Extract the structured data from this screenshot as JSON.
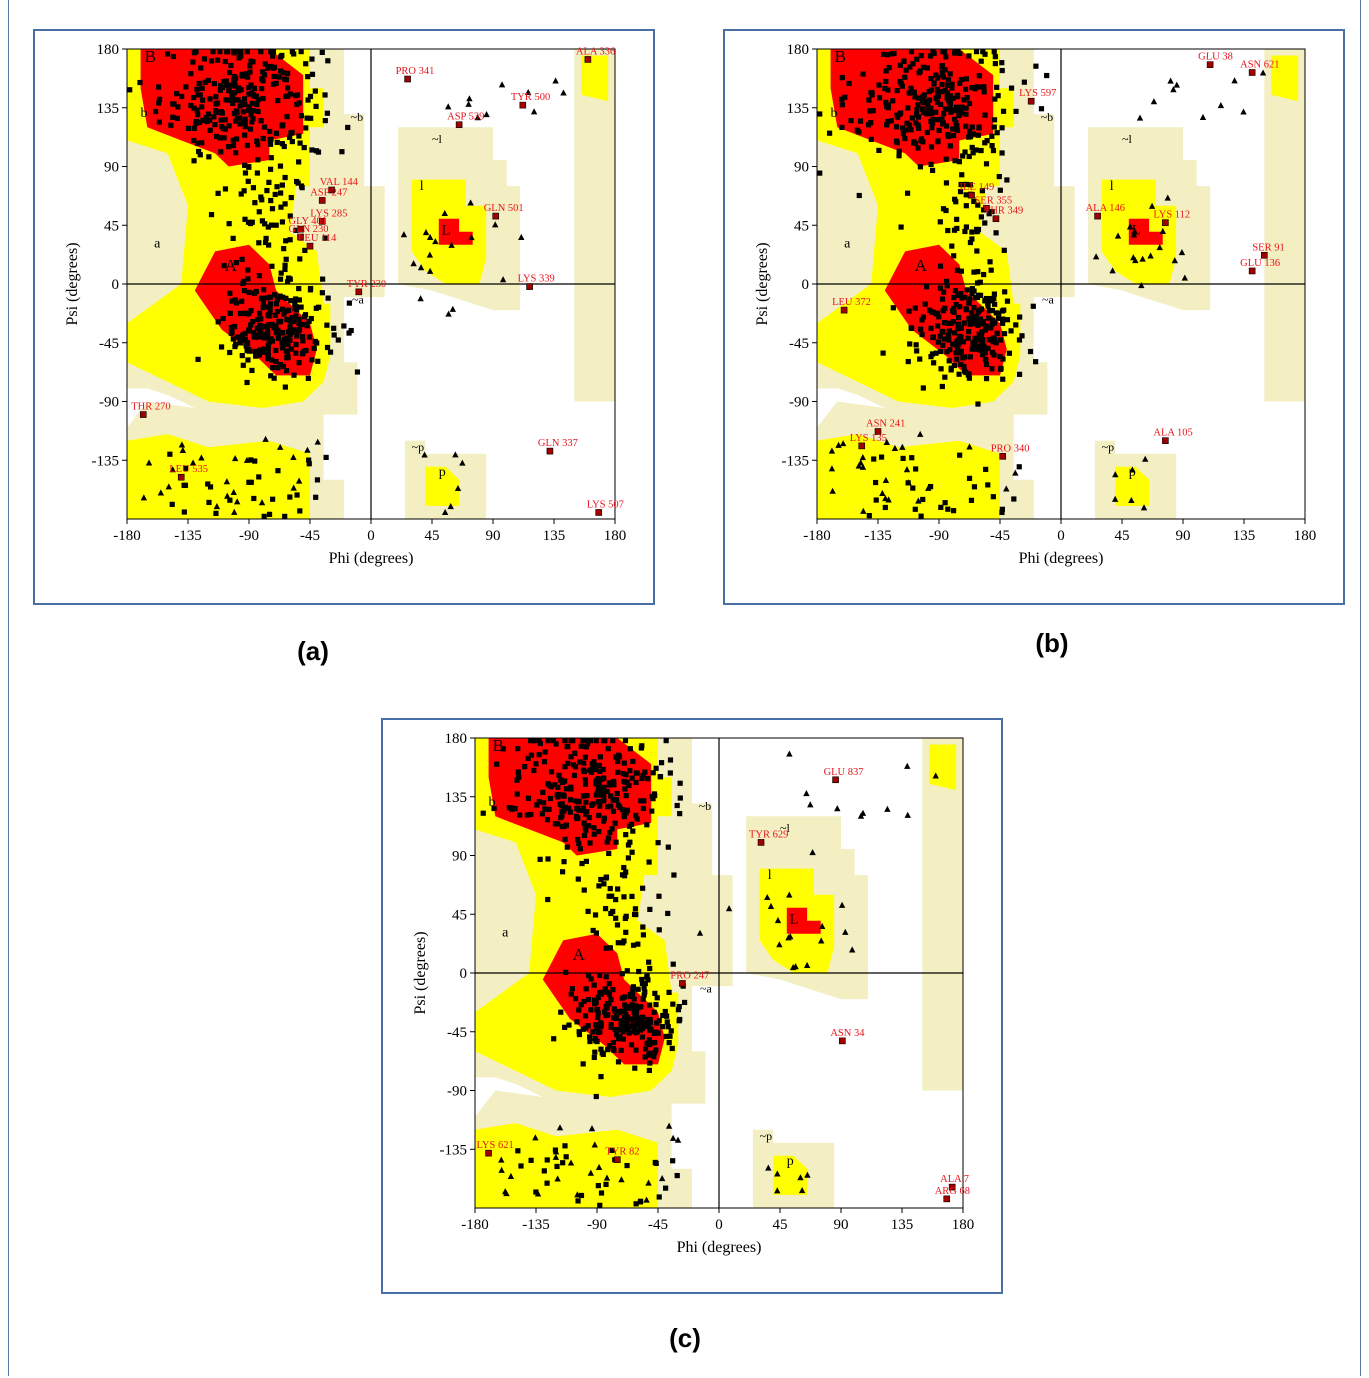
{
  "captions": {
    "a": "(a)",
    "b": "(b)",
    "c": "(c)"
  },
  "chart_data": [
    {
      "type": "scatter",
      "panel": "a",
      "xlabel": "Phi (degrees)",
      "ylabel": "Psi (degrees)",
      "xlim": [
        -180,
        180
      ],
      "ylim": [
        -180,
        180
      ],
      "xticks": [
        "-180",
        "-135",
        "-90",
        "-45",
        "0",
        "45",
        "90",
        "135",
        "180"
      ],
      "yticks": [
        "180",
        "135",
        "90",
        "45",
        "0",
        "-45",
        "-90",
        "-135"
      ],
      "region_labels": [
        "B",
        "b",
        "~b",
        "a",
        "~a",
        "A",
        "l",
        "~l",
        "p",
        "~p",
        "L"
      ],
      "outliers": [
        {
          "label": "ALA 336",
          "phi": 160,
          "psi": 172
        },
        {
          "label": "PRO 341",
          "phi": 27,
          "psi": 157
        },
        {
          "label": "TYR 500",
          "phi": 112,
          "psi": 137
        },
        {
          "label": "ASP 539",
          "phi": 65,
          "psi": 122
        },
        {
          "label": "VAL 144",
          "phi": -29,
          "psi": 72
        },
        {
          "label": "ASP 247",
          "phi": -36,
          "psi": 64
        },
        {
          "label": "LYS 285",
          "phi": -36,
          "psi": 48
        },
        {
          "label": "GLN 501",
          "phi": 92,
          "psi": 52
        },
        {
          "label": "GLY 401",
          "phi": -52,
          "psi": 42
        },
        {
          "label": "GLN 230",
          "phi": -52,
          "psi": 36
        },
        {
          "label": "LEU 114",
          "phi": -45,
          "psi": 29
        },
        {
          "label": "TYR 230",
          "phi": -9,
          "psi": -6
        },
        {
          "label": "LYS 339",
          "phi": 117,
          "psi": -2
        },
        {
          "label": "THR 270",
          "phi": -168,
          "psi": -100
        },
        {
          "label": "GLN 337",
          "phi": 132,
          "psi": -128
        },
        {
          "label": "LEU 535",
          "phi": -140,
          "psi": -148
        },
        {
          "label": "LYS 507",
          "phi": 168,
          "psi": -175
        }
      ]
    },
    {
      "type": "scatter",
      "panel": "b",
      "xlabel": "Phi (degrees)",
      "ylabel": "Psi (degrees)",
      "xlim": [
        -180,
        180
      ],
      "ylim": [
        -180,
        180
      ],
      "xticks": [
        "-180",
        "-135",
        "-90",
        "-45",
        "0",
        "45",
        "90",
        "135",
        "180"
      ],
      "yticks": [
        "180",
        "135",
        "90",
        "45",
        "0",
        "-45",
        "-90",
        "-135"
      ],
      "region_labels": [
        "B",
        "b",
        "~b",
        "a",
        "~a",
        "A",
        "l",
        "~l",
        "p",
        "~p",
        "L"
      ],
      "outliers": [
        {
          "label": "GLU 38",
          "phi": 110,
          "psi": 168
        },
        {
          "label": "ASN 621",
          "phi": 141,
          "psi": 162
        },
        {
          "label": "LYS 597",
          "phi": -22,
          "psi": 140
        },
        {
          "label": "ILE 149",
          "phi": -66,
          "psi": 68
        },
        {
          "label": "SER 355",
          "phi": -55,
          "psi": 58
        },
        {
          "label": "THR 349",
          "phi": -48,
          "psi": 50
        },
        {
          "label": "ALA 146",
          "phi": 27,
          "psi": 52
        },
        {
          "label": "LYS 112",
          "phi": 77,
          "psi": 47
        },
        {
          "label": "SER 91",
          "phi": 150,
          "psi": 22
        },
        {
          "label": "GLU 136",
          "phi": 141,
          "psi": 10
        },
        {
          "label": "LEU 372",
          "phi": -160,
          "psi": -20
        },
        {
          "label": "ASN 241",
          "phi": -135,
          "psi": -113
        },
        {
          "label": "LYS 135",
          "phi": -147,
          "psi": -124
        },
        {
          "label": "PRO 340",
          "phi": -43,
          "psi": -132
        },
        {
          "label": "ALA 105",
          "phi": 77,
          "psi": -120
        }
      ]
    },
    {
      "type": "scatter",
      "panel": "c",
      "xlabel": "Phi (degrees)",
      "ylabel": "Psi (degrees)",
      "xlim": [
        -180,
        180
      ],
      "ylim": [
        -180,
        180
      ],
      "xticks": [
        "-180",
        "-135",
        "-90",
        "-45",
        "0",
        "45",
        "90",
        "135",
        "180"
      ],
      "yticks": [
        "180",
        "135",
        "90",
        "45",
        "0",
        "-45",
        "-90",
        "-135"
      ],
      "region_labels": [
        "B",
        "b",
        "~b",
        "a",
        "~a",
        "A",
        "l",
        "~l",
        "p",
        "~p",
        "L"
      ],
      "outliers": [
        {
          "label": "GLU 837",
          "phi": 86,
          "psi": 148
        },
        {
          "label": "TYR 629",
          "phi": 31,
          "psi": 100
        },
        {
          "label": "PRO 247",
          "phi": -27,
          "psi": -8
        },
        {
          "label": "ASN 34",
          "phi": 91,
          "psi": -52
        },
        {
          "label": "LYS 621",
          "phi": -170,
          "psi": -138
        },
        {
          "label": "TYR 82",
          "phi": -75,
          "psi": -143
        },
        {
          "label": "ALA 7",
          "phi": 172,
          "psi": -164
        },
        {
          "label": "ARG 68",
          "phi": 168,
          "psi": -173
        }
      ]
    }
  ]
}
